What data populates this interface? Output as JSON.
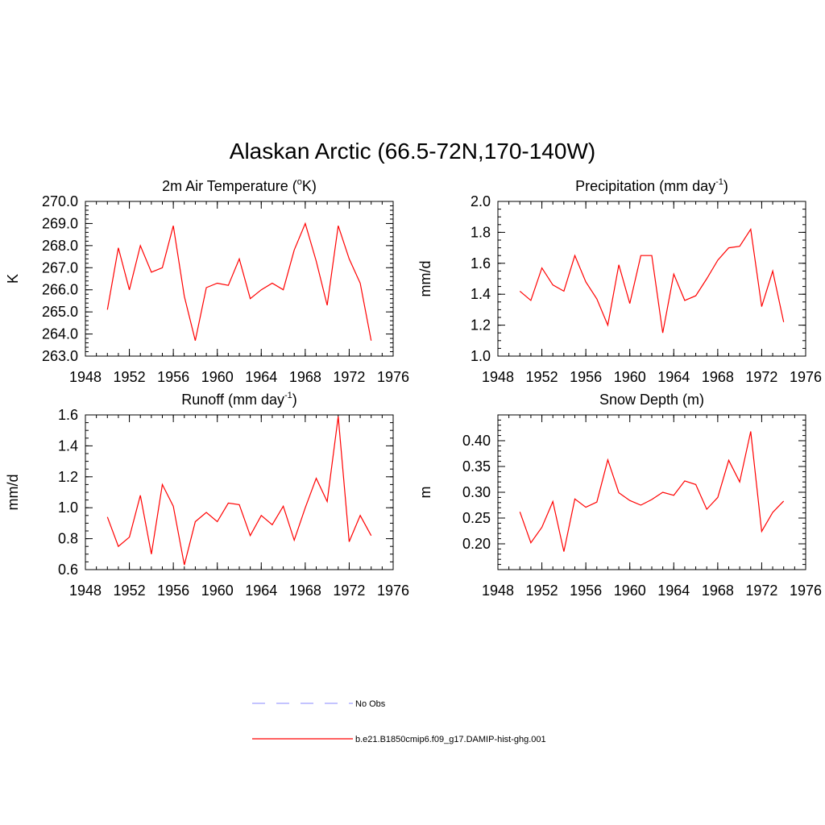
{
  "figure": {
    "title": "Alaskan Arctic (66.5-72N,170-140W)"
  },
  "legend": {
    "placement": "bottom-center",
    "entries": [
      {
        "label": "No Obs",
        "color": "#a0a0ff",
        "dash": true
      },
      {
        "label": "b.e21.B1850cmip6.f09_g17.DAMIP-hist-ghg.001",
        "color": "#ff0000",
        "dash": false
      }
    ]
  },
  "chart_data": [
    {
      "type": "line",
      "title_main": "2m Air Temperature (",
      "title_sup_pre": "o",
      "title_mid": "K)",
      "title_sup": "",
      "title_end": "",
      "xlabel": "",
      "ylabel": "K",
      "xlim": [
        1948,
        1976
      ],
      "ylim": [
        263.0,
        270.0
      ],
      "x_ticks": [
        1948,
        1952,
        1956,
        1960,
        1964,
        1968,
        1972,
        1976
      ],
      "y_ticks": [
        "263.0",
        "264.0",
        "265.0",
        "266.0",
        "267.0",
        "268.0",
        "269.0",
        "270.0"
      ],
      "y_tick_values": [
        263,
        264,
        265,
        266,
        267,
        268,
        269,
        270
      ],
      "x_minor_step": 1,
      "y_minor_step": 0.2,
      "grid": false,
      "series": [
        {
          "color": "#ff0000",
          "x": [
            1950,
            1951,
            1952,
            1953,
            1954,
            1955,
            1956,
            1957,
            1958,
            1959,
            1960,
            1961,
            1962,
            1963,
            1964,
            1965,
            1966,
            1967,
            1968,
            1969,
            1970,
            1971,
            1972,
            1973,
            1974
          ],
          "values": [
            265.1,
            267.9,
            266.0,
            268.0,
            266.8,
            267.0,
            268.9,
            265.7,
            263.7,
            266.1,
            266.3,
            266.2,
            267.4,
            265.6,
            266.0,
            266.3,
            266.0,
            267.8,
            269.0,
            267.3,
            265.3,
            268.9,
            267.4,
            266.3,
            263.7
          ]
        }
      ]
    },
    {
      "type": "line",
      "title_main": "Precipitation (mm day",
      "title_sup_pre": "",
      "title_mid": "",
      "title_sup": "-1",
      "title_end": ")",
      "xlabel": "",
      "ylabel": "mm/d",
      "xlim": [
        1948,
        1976
      ],
      "ylim": [
        1.0,
        2.0
      ],
      "x_ticks": [
        1948,
        1952,
        1956,
        1960,
        1964,
        1968,
        1972,
        1976
      ],
      "y_ticks": [
        "1.0",
        "1.2",
        "1.4",
        "1.6",
        "1.8",
        "2.0"
      ],
      "y_tick_values": [
        1.0,
        1.2,
        1.4,
        1.6,
        1.8,
        2.0
      ],
      "x_minor_step": 1,
      "y_minor_step": 0.05,
      "grid": false,
      "series": [
        {
          "color": "#ff0000",
          "x": [
            1950,
            1951,
            1952,
            1953,
            1954,
            1955,
            1956,
            1957,
            1958,
            1959,
            1960,
            1961,
            1962,
            1963,
            1964,
            1965,
            1966,
            1967,
            1968,
            1969,
            1970,
            1971,
            1972,
            1973,
            1974
          ],
          "values": [
            1.42,
            1.36,
            1.57,
            1.46,
            1.42,
            1.65,
            1.48,
            1.37,
            1.2,
            1.59,
            1.34,
            1.65,
            1.65,
            1.15,
            1.53,
            1.36,
            1.39,
            1.5,
            1.62,
            1.7,
            1.71,
            1.82,
            1.32,
            1.55,
            1.22
          ]
        }
      ]
    },
    {
      "type": "line",
      "title_main": "Runoff (mm day",
      "title_sup_pre": "",
      "title_mid": "",
      "title_sup": "-1",
      "title_end": ")",
      "xlabel": "",
      "ylabel": "mm/d",
      "xlim": [
        1948,
        1976
      ],
      "ylim": [
        0.6,
        1.6
      ],
      "x_ticks": [
        1948,
        1952,
        1956,
        1960,
        1964,
        1968,
        1972,
        1976
      ],
      "y_ticks": [
        "0.6",
        "0.8",
        "1.0",
        "1.2",
        "1.4",
        "1.6"
      ],
      "y_tick_values": [
        0.6,
        0.8,
        1.0,
        1.2,
        1.4,
        1.6
      ],
      "x_minor_step": 1,
      "y_minor_step": 0.05,
      "grid": false,
      "series": [
        {
          "color": "#ff0000",
          "x": [
            1950,
            1951,
            1952,
            1953,
            1954,
            1955,
            1956,
            1957,
            1958,
            1959,
            1960,
            1961,
            1962,
            1963,
            1964,
            1965,
            1966,
            1967,
            1968,
            1969,
            1970,
            1971,
            1972,
            1973,
            1974
          ],
          "values": [
            0.94,
            0.75,
            0.81,
            1.08,
            0.7,
            1.15,
            1.01,
            0.63,
            0.91,
            0.97,
            0.91,
            1.03,
            1.02,
            0.82,
            0.95,
            0.89,
            1.01,
            0.79,
            1.0,
            1.19,
            1.04,
            1.59,
            0.78,
            0.95,
            0.82
          ]
        }
      ]
    },
    {
      "type": "line",
      "title_main": "Snow Depth (m)",
      "title_sup_pre": "",
      "title_mid": "",
      "title_sup": "",
      "title_end": "",
      "xlabel": "",
      "ylabel": "m",
      "xlim": [
        1948,
        1976
      ],
      "ylim": [
        0.15,
        0.45
      ],
      "x_ticks": [
        1948,
        1952,
        1956,
        1960,
        1964,
        1968,
        1972,
        1976
      ],
      "y_ticks": [
        "0.20",
        "0.25",
        "0.30",
        "0.35",
        "0.40"
      ],
      "y_tick_values": [
        0.2,
        0.25,
        0.3,
        0.35,
        0.4
      ],
      "x_minor_step": 1,
      "y_minor_step": 0.01,
      "grid": false,
      "series": [
        {
          "color": "#ff0000",
          "x": [
            1950,
            1951,
            1952,
            1953,
            1954,
            1955,
            1956,
            1957,
            1958,
            1959,
            1960,
            1961,
            1962,
            1963,
            1964,
            1965,
            1966,
            1967,
            1968,
            1969,
            1970,
            1971,
            1972,
            1973,
            1974
          ],
          "values": [
            0.262,
            0.202,
            0.232,
            0.282,
            0.185,
            0.287,
            0.271,
            0.281,
            0.363,
            0.299,
            0.284,
            0.275,
            0.286,
            0.3,
            0.294,
            0.322,
            0.315,
            0.267,
            0.29,
            0.362,
            0.32,
            0.418,
            0.224,
            0.261,
            0.283
          ]
        }
      ]
    }
  ]
}
